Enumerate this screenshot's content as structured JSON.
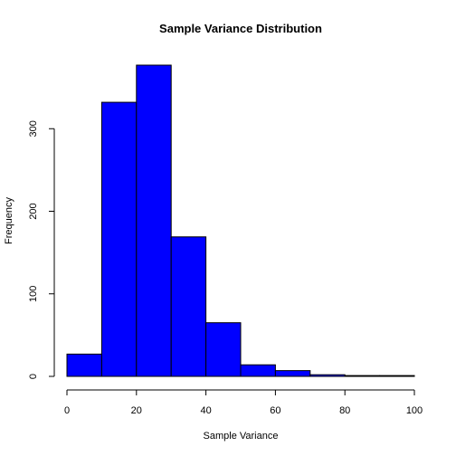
{
  "chart_data": {
    "type": "bar",
    "title": "Sample Variance Distribution",
    "xlabel": "Sample Variance",
    "ylabel": "Frequency",
    "bin_edges": [
      0,
      10,
      20,
      30,
      40,
      50,
      60,
      70,
      80,
      90,
      100
    ],
    "values": [
      27,
      332,
      377,
      169,
      65,
      14,
      7,
      2,
      1,
      1
    ],
    "xlim": [
      0,
      100
    ],
    "ylim": [
      0,
      377
    ],
    "x_ticks": [
      0,
      20,
      40,
      60,
      80,
      100
    ],
    "y_ticks": [
      0,
      100,
      200,
      300
    ],
    "bar_color": "#0000ff",
    "edge_color": "#000000",
    "grid": false,
    "legend": "none"
  }
}
